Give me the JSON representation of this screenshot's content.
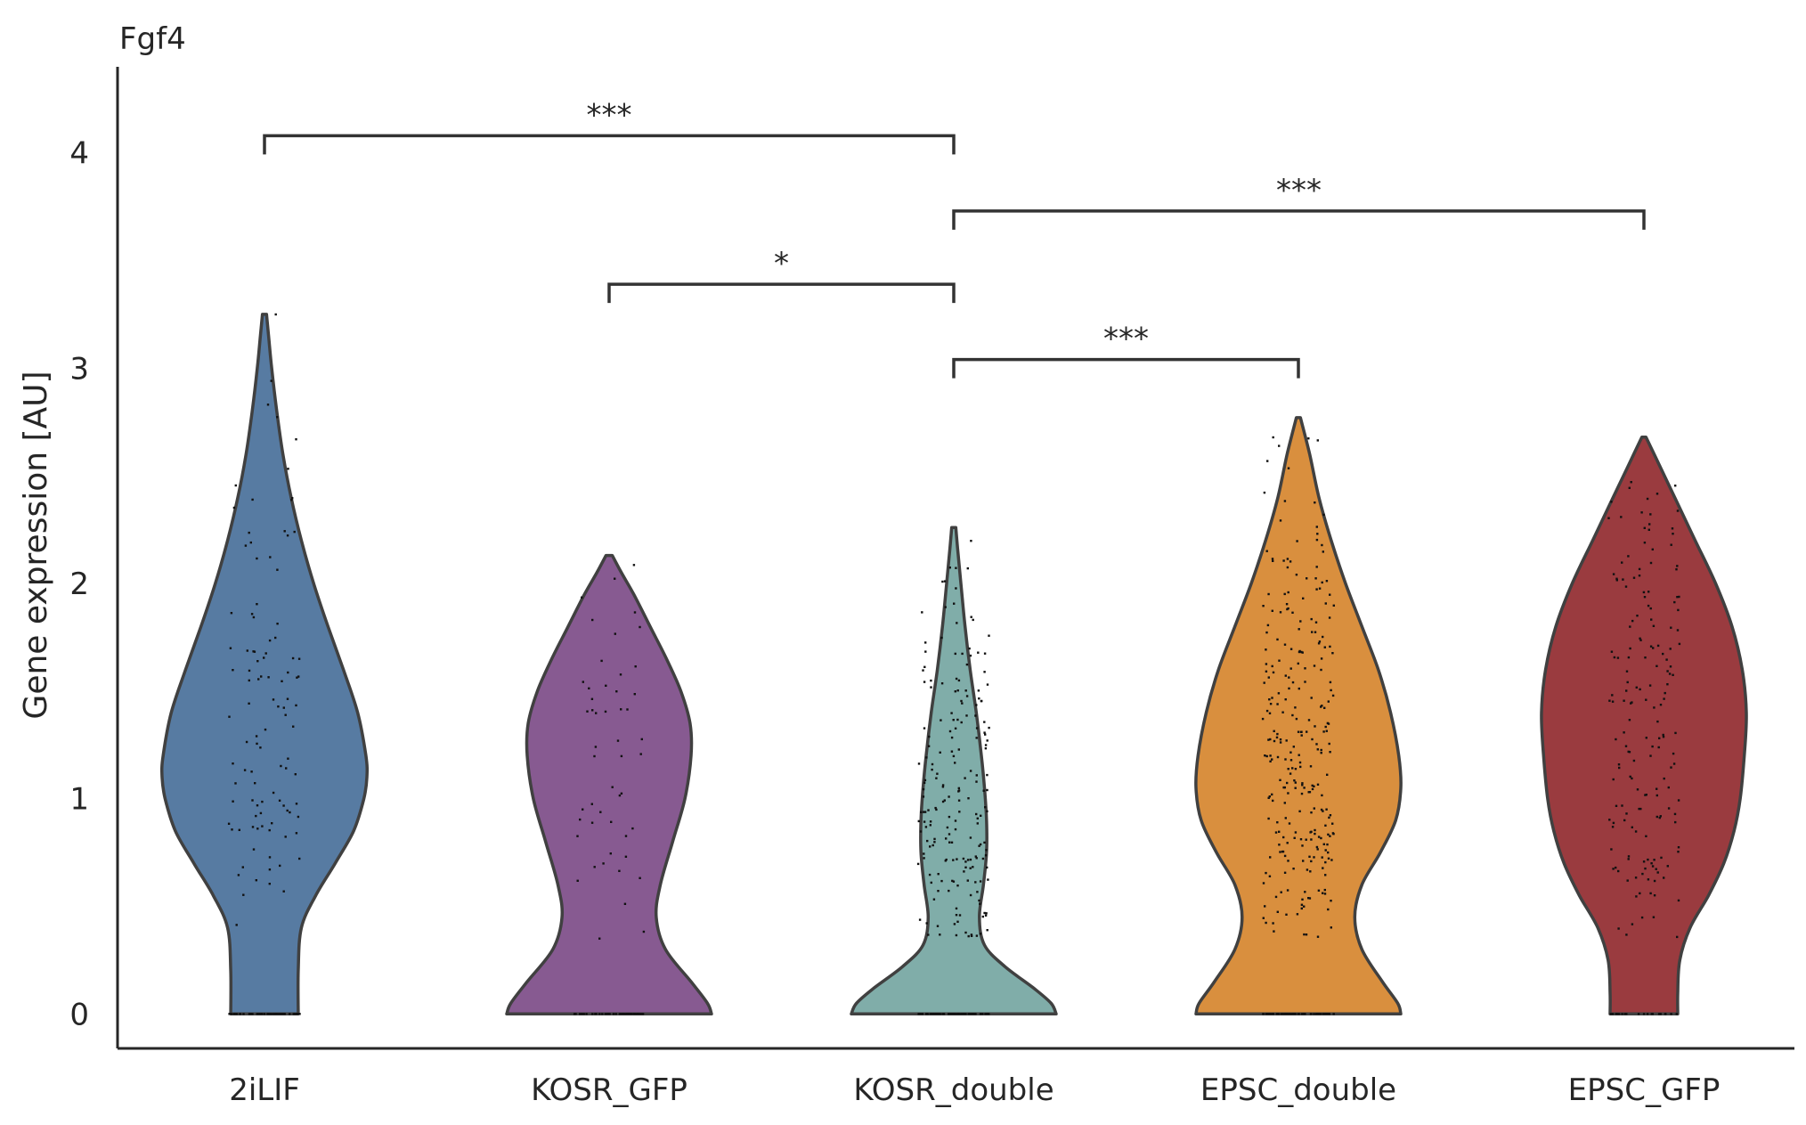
{
  "chart_data": {
    "type": "violin",
    "title": "Fgf4",
    "xlabel": "",
    "ylabel": "Gene expression [AU]",
    "ylim": [
      -0.16,
      4.4
    ],
    "yticks": [
      0,
      1,
      2,
      3,
      4
    ],
    "categories": [
      "2iLIF",
      "KOSR_GFP",
      "KOSR_double",
      "EPSC_double",
      "EPSC_GFP"
    ],
    "grid": false,
    "legend": "none",
    "series": [
      {
        "category": "2iLIF",
        "color": "#577ba2",
        "max": 3.25,
        "density_y": [
          0,
          0.2,
          0.4,
          0.55,
          0.7,
          0.85,
          1.0,
          1.1,
          1.2,
          1.4,
          1.6,
          1.8,
          2.0,
          2.2,
          2.4,
          2.6,
          2.8,
          3.0,
          3.15,
          3.25
        ],
        "density_w": [
          0.33,
          0.33,
          0.36,
          0.5,
          0.69,
          0.87,
          0.97,
          1.0,
          0.99,
          0.91,
          0.77,
          0.62,
          0.48,
          0.36,
          0.26,
          0.18,
          0.12,
          0.07,
          0.04,
          0.02
        ],
        "n_points": 160,
        "zero_fraction": 0.35
      },
      {
        "category": "KOSR_GFP",
        "color": "#875a91",
        "max": 2.13,
        "density_y": [
          0,
          0.05,
          0.15,
          0.3,
          0.45,
          0.6,
          0.8,
          1.0,
          1.2,
          1.35,
          1.5,
          1.65,
          1.8,
          1.95,
          2.05,
          2.13
        ],
        "density_w": [
          1.0,
          0.96,
          0.8,
          0.55,
          0.46,
          0.5,
          0.62,
          0.74,
          0.8,
          0.79,
          0.7,
          0.56,
          0.4,
          0.24,
          0.12,
          0.03
        ],
        "n_points": 100,
        "zero_fraction": 0.5
      },
      {
        "category": "KOSR_double",
        "color": "#80ada9",
        "max": 2.26,
        "density_y": [
          0,
          0.05,
          0.12,
          0.22,
          0.32,
          0.45,
          0.6,
          0.75,
          0.9,
          1.05,
          1.2,
          1.4,
          1.6,
          1.8,
          2.0,
          2.15,
          2.26
        ],
        "density_w": [
          1.0,
          0.95,
          0.78,
          0.5,
          0.3,
          0.25,
          0.29,
          0.32,
          0.32,
          0.3,
          0.27,
          0.22,
          0.16,
          0.11,
          0.07,
          0.04,
          0.02
        ],
        "n_points": 280,
        "zero_fraction": 0.3
      },
      {
        "category": "EPSC_double",
        "color": "#d98f3e",
        "max": 2.77,
        "density_y": [
          0,
          0.05,
          0.15,
          0.3,
          0.45,
          0.6,
          0.75,
          0.9,
          1.05,
          1.2,
          1.4,
          1.6,
          1.8,
          2.0,
          2.2,
          2.4,
          2.6,
          2.77
        ],
        "density_w": [
          1.0,
          0.97,
          0.82,
          0.62,
          0.55,
          0.62,
          0.8,
          0.95,
          1.0,
          0.98,
          0.9,
          0.78,
          0.62,
          0.46,
          0.32,
          0.2,
          0.11,
          0.02
        ],
        "n_points": 340,
        "zero_fraction": 0.2
      },
      {
        "category": "EPSC_GFP",
        "color": "#9a3b3f",
        "max": 2.68,
        "density_y": [
          0,
          0.1,
          0.25,
          0.4,
          0.55,
          0.7,
          0.85,
          1.0,
          1.2,
          1.4,
          1.6,
          1.8,
          2.0,
          2.2,
          2.4,
          2.55,
          2.68
        ],
        "density_w": [
          0.33,
          0.33,
          0.35,
          0.45,
          0.63,
          0.78,
          0.88,
          0.94,
          0.98,
          1.0,
          0.96,
          0.86,
          0.7,
          0.5,
          0.3,
          0.15,
          0.02
        ],
        "n_points": 190,
        "zero_fraction": 0.1
      }
    ],
    "significance": [
      {
        "from": "2iLIF",
        "to": "KOSR_double",
        "y": 4.08,
        "label": "***"
      },
      {
        "from": "KOSR_double",
        "to": "EPSC_GFP",
        "y": 3.73,
        "label": "***"
      },
      {
        "from": "KOSR_GFP",
        "to": "KOSR_double",
        "y": 3.39,
        "label": "*"
      },
      {
        "from": "KOSR_double",
        "to": "EPSC_double",
        "y": 3.04,
        "label": "***"
      }
    ]
  }
}
